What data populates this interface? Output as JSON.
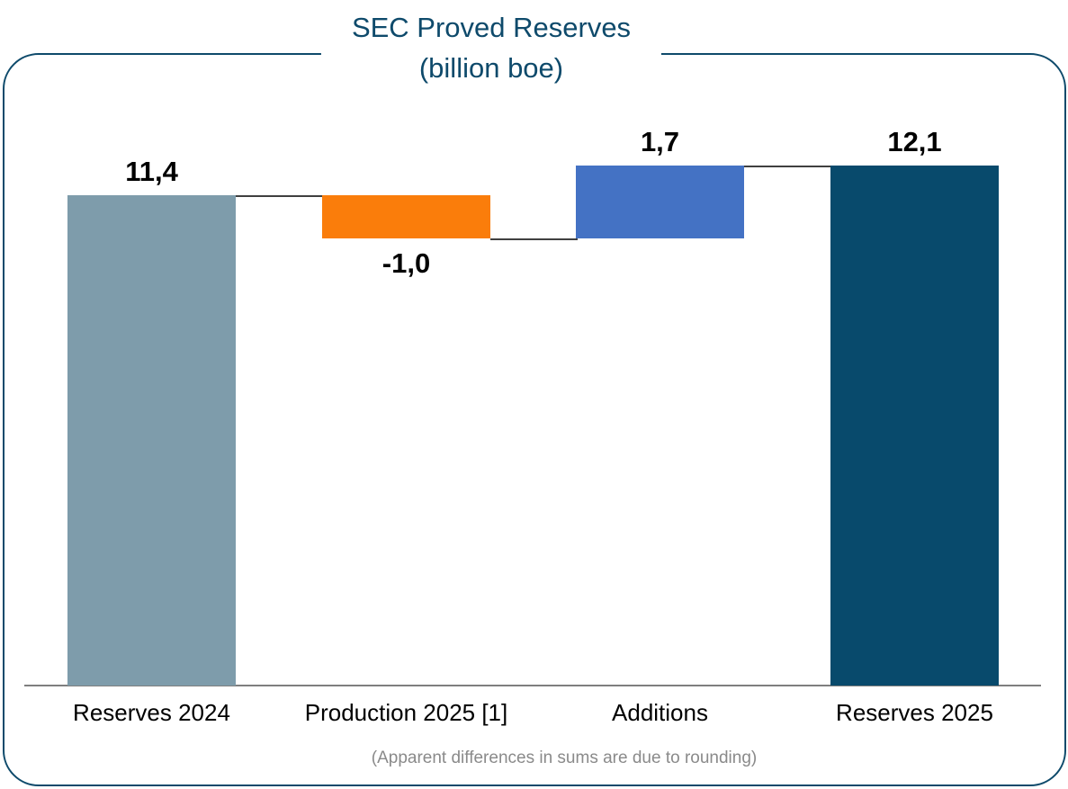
{
  "title": {
    "line1": "SEC Proved Reserves",
    "line2": "(billion boe)"
  },
  "footnote": "(Apparent differences in sums are due to rounding)",
  "colors": {
    "title": "#0E4A6B",
    "frame_border": "#0E4A6B",
    "axis_line": "#7F7F7F",
    "connector_line": "#404040",
    "data_label": "#000000",
    "category_label": "#000000",
    "footnote_text": "#8A8A8A",
    "background": "#FFFFFF"
  },
  "chart_data": {
    "type": "bar",
    "subtype": "waterfall",
    "title": "SEC Proved Reserves (billion boe)",
    "categories": [
      "Reserves 2024",
      "Production 2025 [1]",
      "Additions",
      "Reserves 2025"
    ],
    "values": [
      11.4,
      -1.0,
      1.7,
      12.1
    ],
    "value_labels": [
      "11,4",
      "-1,0",
      "1,7",
      "12,1"
    ],
    "bar_roles": [
      "total",
      "decrease",
      "increase",
      "total"
    ],
    "bar_colors": [
      "#7E9CAB",
      "#FA7D0B",
      "#4472C4",
      "#084A6C"
    ],
    "ylim": [
      0,
      12.5
    ],
    "grid": false,
    "legend": false,
    "connectors": true,
    "x_axis_line": true,
    "annotation": "(Apparent differences in sums are due to rounding)"
  }
}
